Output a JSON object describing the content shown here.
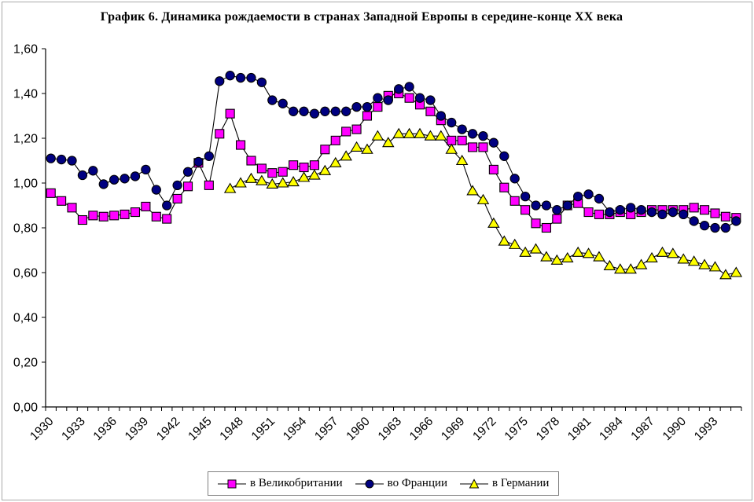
{
  "chart_data": {
    "type": "line",
    "title": "График 6. Динамика рождаемости в странах Западной Европы в середине-конце XX века",
    "x": [
      1930,
      1931,
      1932,
      1933,
      1934,
      1935,
      1936,
      1937,
      1938,
      1939,
      1940,
      1941,
      1942,
      1943,
      1944,
      1945,
      1946,
      1947,
      1948,
      1949,
      1950,
      1951,
      1952,
      1953,
      1954,
      1955,
      1956,
      1957,
      1958,
      1959,
      1960,
      1961,
      1962,
      1963,
      1964,
      1965,
      1966,
      1967,
      1968,
      1969,
      1970,
      1971,
      1972,
      1973,
      1974,
      1975,
      1976,
      1977,
      1978,
      1979,
      1980,
      1981,
      1982,
      1983,
      1984,
      1985,
      1986,
      1987,
      1988,
      1989,
      1990,
      1991,
      1992,
      1993,
      1994,
      1995
    ],
    "x_tick_labels": [
      "1930",
      "1933",
      "1936",
      "1939",
      "1942",
      "1945",
      "1948",
      "1951",
      "1954",
      "1957",
      "1960",
      "1963",
      "1966",
      "1969",
      "1972",
      "1975",
      "1978",
      "1981",
      "1984",
      "1987",
      "1990",
      "1993"
    ],
    "y_tick_labels": [
      "0,00",
      "0,20",
      "0,40",
      "0,60",
      "0,80",
      "1,00",
      "1,20",
      "1,40",
      "1,60"
    ],
    "ylim": [
      0,
      1.6
    ],
    "ytick_step": 0.2,
    "grid": false,
    "legend_position": "bottom",
    "series": [
      {
        "name": "в Великобритании",
        "marker": "square",
        "color": "#FF00FF",
        "values": [
          0.955,
          0.92,
          0.89,
          0.835,
          0.855,
          0.85,
          0.855,
          0.86,
          0.87,
          0.895,
          0.85,
          0.84,
          0.93,
          0.985,
          1.09,
          0.99,
          1.22,
          1.31,
          1.17,
          1.1,
          1.065,
          1.045,
          1.05,
          1.08,
          1.07,
          1.08,
          1.15,
          1.19,
          1.23,
          1.24,
          1.3,
          1.34,
          1.39,
          1.4,
          1.38,
          1.35,
          1.32,
          1.28,
          1.19,
          1.19,
          1.16,
          1.16,
          1.06,
          0.98,
          0.92,
          0.88,
          0.82,
          0.8,
          0.84,
          0.9,
          0.91,
          0.87,
          0.86,
          0.86,
          0.87,
          0.86,
          0.87,
          0.88,
          0.88,
          0.88,
          0.88,
          0.89,
          0.88,
          0.865,
          0.85,
          0.845
        ]
      },
      {
        "name": "во Франции",
        "marker": "circle",
        "color": "#000080",
        "values": [
          1.11,
          1.105,
          1.1,
          1.035,
          1.055,
          0.995,
          1.015,
          1.02,
          1.03,
          1.06,
          0.97,
          0.9,
          0.99,
          1.05,
          1.095,
          1.12,
          1.455,
          1.48,
          1.47,
          1.47,
          1.45,
          1.37,
          1.355,
          1.32,
          1.32,
          1.31,
          1.32,
          1.32,
          1.32,
          1.34,
          1.34,
          1.38,
          1.37,
          1.42,
          1.43,
          1.38,
          1.37,
          1.3,
          1.27,
          1.24,
          1.22,
          1.21,
          1.18,
          1.12,
          1.02,
          0.94,
          0.9,
          0.9,
          0.88,
          0.9,
          0.94,
          0.95,
          0.93,
          0.87,
          0.88,
          0.89,
          0.88,
          0.87,
          0.86,
          0.87,
          0.86,
          0.83,
          0.81,
          0.8,
          0.8,
          0.83
        ]
      },
      {
        "name": "в Германии",
        "marker": "triangle",
        "color": "#FFFF00",
        "values": [
          null,
          null,
          null,
          null,
          null,
          null,
          null,
          null,
          null,
          null,
          null,
          null,
          null,
          null,
          null,
          null,
          null,
          0.975,
          1.0,
          1.02,
          1.01,
          0.995,
          1.0,
          1.005,
          1.025,
          1.035,
          1.055,
          1.09,
          1.12,
          1.16,
          1.15,
          1.21,
          1.18,
          1.22,
          1.22,
          1.22,
          1.21,
          1.21,
          1.15,
          1.1,
          0.965,
          0.925,
          0.82,
          0.74,
          0.725,
          0.69,
          0.705,
          0.67,
          0.655,
          0.665,
          0.69,
          0.685,
          0.67,
          0.63,
          0.615,
          0.615,
          0.635,
          0.665,
          0.69,
          0.685,
          0.66,
          0.65,
          0.635,
          0.625,
          0.59,
          0.6
        ]
      }
    ],
    "axis_color": "#000000",
    "legend_border_color": "#808080"
  }
}
